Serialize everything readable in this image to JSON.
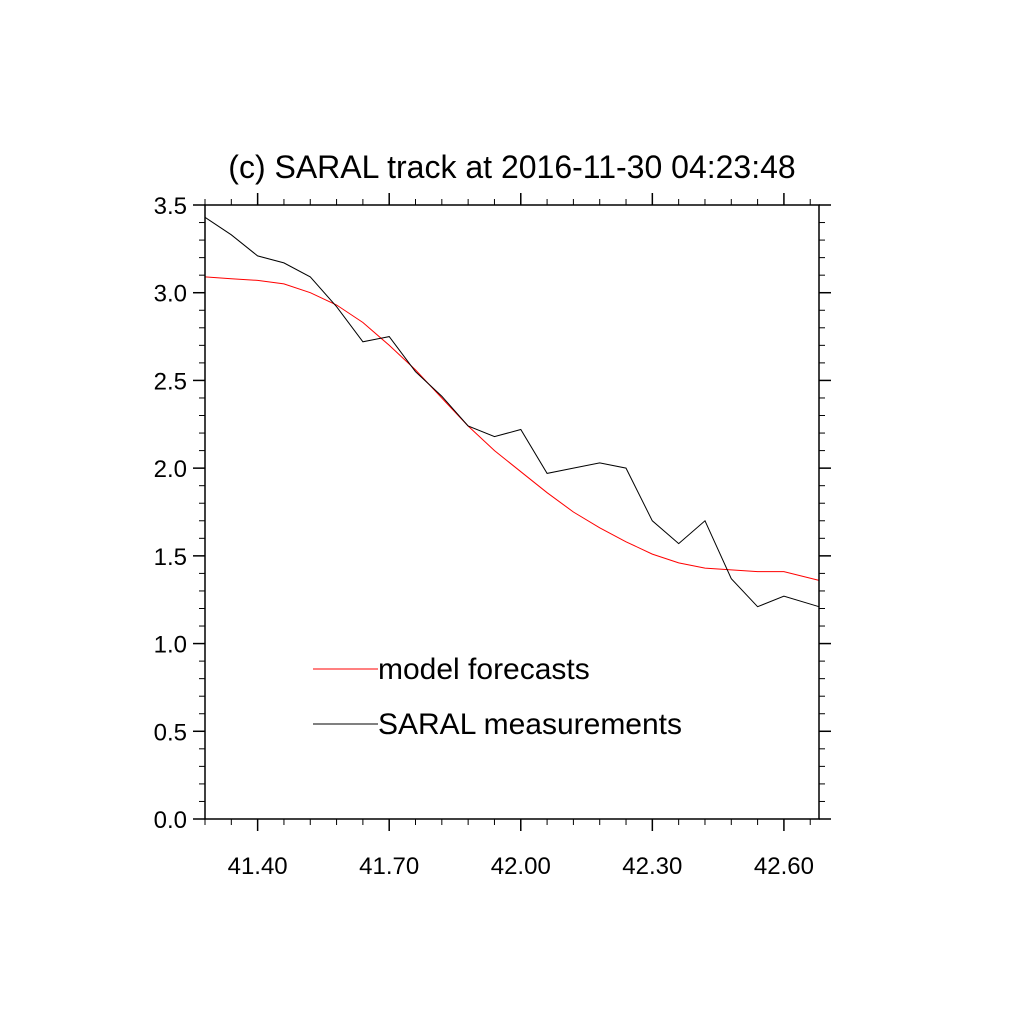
{
  "chart_data": {
    "type": "line",
    "title": "(c) SARAL track at 2016-11-30 04:23:48",
    "xlabel": "",
    "ylabel": "",
    "xlim": [
      41.28,
      42.68
    ],
    "ylim": [
      0,
      3.5
    ],
    "x_ticks": [
      "41.40",
      "41.70",
      "42.00",
      "42.30",
      "42.60"
    ],
    "y_ticks": [
      "0.0",
      "0.5",
      "1.0",
      "1.5",
      "2.0",
      "2.5",
      "3.0",
      "3.5"
    ],
    "legend_placement": "lower-left (inside)",
    "series": [
      {
        "name": "model forecasts",
        "color": "#ff0000",
        "x": [
          41.28,
          41.34,
          41.4,
          41.46,
          41.52,
          41.58,
          41.64,
          41.7,
          41.76,
          41.82,
          41.88,
          41.94,
          42.0,
          42.06,
          42.12,
          42.18,
          42.24,
          42.3,
          42.36,
          42.42,
          42.48,
          42.54,
          42.6,
          42.68
        ],
        "y": [
          3.09,
          3.08,
          3.07,
          3.05,
          3.0,
          2.93,
          2.83,
          2.7,
          2.56,
          2.4,
          2.24,
          2.1,
          1.98,
          1.86,
          1.75,
          1.66,
          1.58,
          1.51,
          1.46,
          1.43,
          1.42,
          1.41,
          1.41,
          1.36
        ]
      },
      {
        "name": "SARAL measurements",
        "color": "#000000",
        "x": [
          41.28,
          41.34,
          41.4,
          41.46,
          41.52,
          41.58,
          41.64,
          41.7,
          41.76,
          41.82,
          41.88,
          41.94,
          42.0,
          42.06,
          42.12,
          42.18,
          42.24,
          42.3,
          42.36,
          42.42,
          42.48,
          42.54,
          42.6,
          42.68
        ],
        "y": [
          3.43,
          3.33,
          3.21,
          3.17,
          3.09,
          2.92,
          2.72,
          2.75,
          2.55,
          2.41,
          2.24,
          2.18,
          2.22,
          1.97,
          2.0,
          2.03,
          2.0,
          1.7,
          1.57,
          1.7,
          1.37,
          1.21,
          1.27,
          1.21
        ]
      }
    ]
  }
}
